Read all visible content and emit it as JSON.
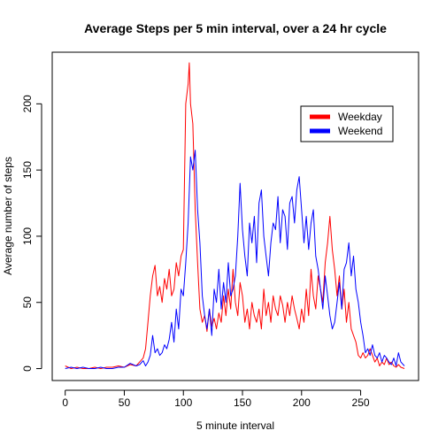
{
  "chart_data": {
    "type": "line",
    "title": "Average Steps per 5 min interval, over a 24 hr cycle",
    "xlabel": "5 minute interval",
    "ylabel": "Average number of steps",
    "xlim": [
      -11,
      299
    ],
    "ylim": [
      -9,
      239
    ],
    "x_ticks": [
      "0",
      "50",
      "100",
      "150",
      "200",
      "250"
    ],
    "y_ticks": [
      "0",
      "50",
      "100",
      "150",
      "200"
    ],
    "grid": false,
    "legend_position": "top-right",
    "series": [
      {
        "name": "Weekday",
        "color": "#ff0000",
        "x": [
          0,
          5,
          10,
          15,
          20,
          25,
          30,
          35,
          40,
          45,
          50,
          55,
          60,
          63,
          66,
          68,
          70,
          72,
          74,
          76,
          78,
          80,
          82,
          84,
          86,
          88,
          90,
          92,
          94,
          96,
          98,
          100,
          102,
          104,
          105,
          106,
          108,
          110,
          112,
          114,
          116,
          118,
          120,
          122,
          124,
          126,
          128,
          130,
          132,
          134,
          136,
          138,
          140,
          142,
          144,
          146,
          148,
          150,
          152,
          154,
          156,
          158,
          160,
          162,
          164,
          166,
          168,
          170,
          172,
          174,
          176,
          178,
          180,
          182,
          184,
          186,
          188,
          190,
          192,
          194,
          196,
          198,
          200,
          202,
          204,
          206,
          208,
          210,
          212,
          214,
          216,
          218,
          220,
          222,
          224,
          226,
          228,
          230,
          232,
          234,
          236,
          238,
          240,
          242,
          244,
          246,
          248,
          250,
          252,
          254,
          256,
          258,
          260,
          262,
          264,
          266,
          268,
          270,
          272,
          274,
          276,
          278,
          280,
          282,
          284,
          287
        ],
        "values": [
          2,
          0,
          1,
          0,
          0,
          1,
          0,
          1,
          1,
          2,
          1,
          3,
          2,
          5,
          8,
          15,
          35,
          55,
          70,
          78,
          55,
          62,
          50,
          68,
          60,
          75,
          55,
          60,
          80,
          70,
          85,
          90,
          200,
          215,
          231,
          200,
          185,
          120,
          80,
          45,
          35,
          40,
          28,
          45,
          32,
          38,
          30,
          42,
          35,
          55,
          40,
          60,
          45,
          75,
          50,
          40,
          65,
          55,
          35,
          45,
          30,
          50,
          40,
          35,
          45,
          30,
          60,
          40,
          50,
          35,
          55,
          45,
          40,
          55,
          48,
          35,
          50,
          40,
          55,
          45,
          38,
          30,
          45,
          35,
          60,
          40,
          75,
          55,
          45,
          70,
          60,
          50,
          80,
          95,
          115,
          90,
          75,
          55,
          70,
          45,
          60,
          35,
          50,
          30,
          25,
          20,
          10,
          8,
          12,
          8,
          10,
          15,
          10,
          5,
          8,
          2,
          5,
          3,
          8,
          3,
          5,
          2,
          1,
          3,
          1,
          0
        ]
      },
      {
        "name": "Weekend",
        "color": "#0000ff",
        "x": [
          0,
          5,
          10,
          15,
          20,
          25,
          30,
          35,
          40,
          45,
          50,
          55,
          60,
          63,
          66,
          68,
          70,
          72,
          74,
          76,
          78,
          80,
          82,
          84,
          86,
          88,
          90,
          92,
          94,
          96,
          98,
          100,
          102,
          104,
          106,
          108,
          110,
          112,
          114,
          116,
          118,
          120,
          122,
          124,
          126,
          128,
          130,
          132,
          134,
          136,
          138,
          140,
          142,
          144,
          146,
          148,
          150,
          152,
          154,
          156,
          158,
          160,
          162,
          164,
          166,
          168,
          170,
          172,
          174,
          176,
          178,
          180,
          182,
          184,
          186,
          188,
          190,
          192,
          194,
          196,
          198,
          200,
          202,
          204,
          206,
          208,
          210,
          212,
          214,
          216,
          218,
          220,
          222,
          224,
          226,
          228,
          230,
          232,
          234,
          236,
          238,
          240,
          242,
          244,
          246,
          248,
          250,
          252,
          254,
          256,
          258,
          260,
          262,
          264,
          266,
          268,
          270,
          272,
          274,
          276,
          278,
          280,
          282,
          284,
          287
        ],
        "values": [
          0,
          1,
          0,
          1,
          0,
          0,
          1,
          0,
          0,
          1,
          1,
          4,
          2,
          3,
          6,
          2,
          5,
          10,
          25,
          12,
          15,
          10,
          12,
          18,
          15,
          22,
          35,
          20,
          45,
          30,
          60,
          55,
          80,
          110,
          160,
          150,
          165,
          120,
          95,
          55,
          40,
          30,
          45,
          25,
          60,
          50,
          75,
          45,
          65,
          50,
          80,
          55,
          60,
          70,
          100,
          140,
          105,
          85,
          70,
          110,
          95,
          115,
          80,
          125,
          135,
          100,
          85,
          70,
          95,
          110,
          105,
          130,
          95,
          120,
          115,
          90,
          125,
          130,
          110,
          135,
          145,
          120,
          95,
          115,
          90,
          110,
          120,
          85,
          75,
          60,
          45,
          70,
          55,
          40,
          30,
          35,
          50,
          65,
          45,
          75,
          80,
          95,
          70,
          85,
          60,
          50,
          35,
          25,
          12,
          15,
          10,
          18,
          10,
          8,
          12,
          5,
          10,
          8,
          5,
          3,
          8,
          2,
          12,
          5,
          2
        ]
      }
    ]
  }
}
